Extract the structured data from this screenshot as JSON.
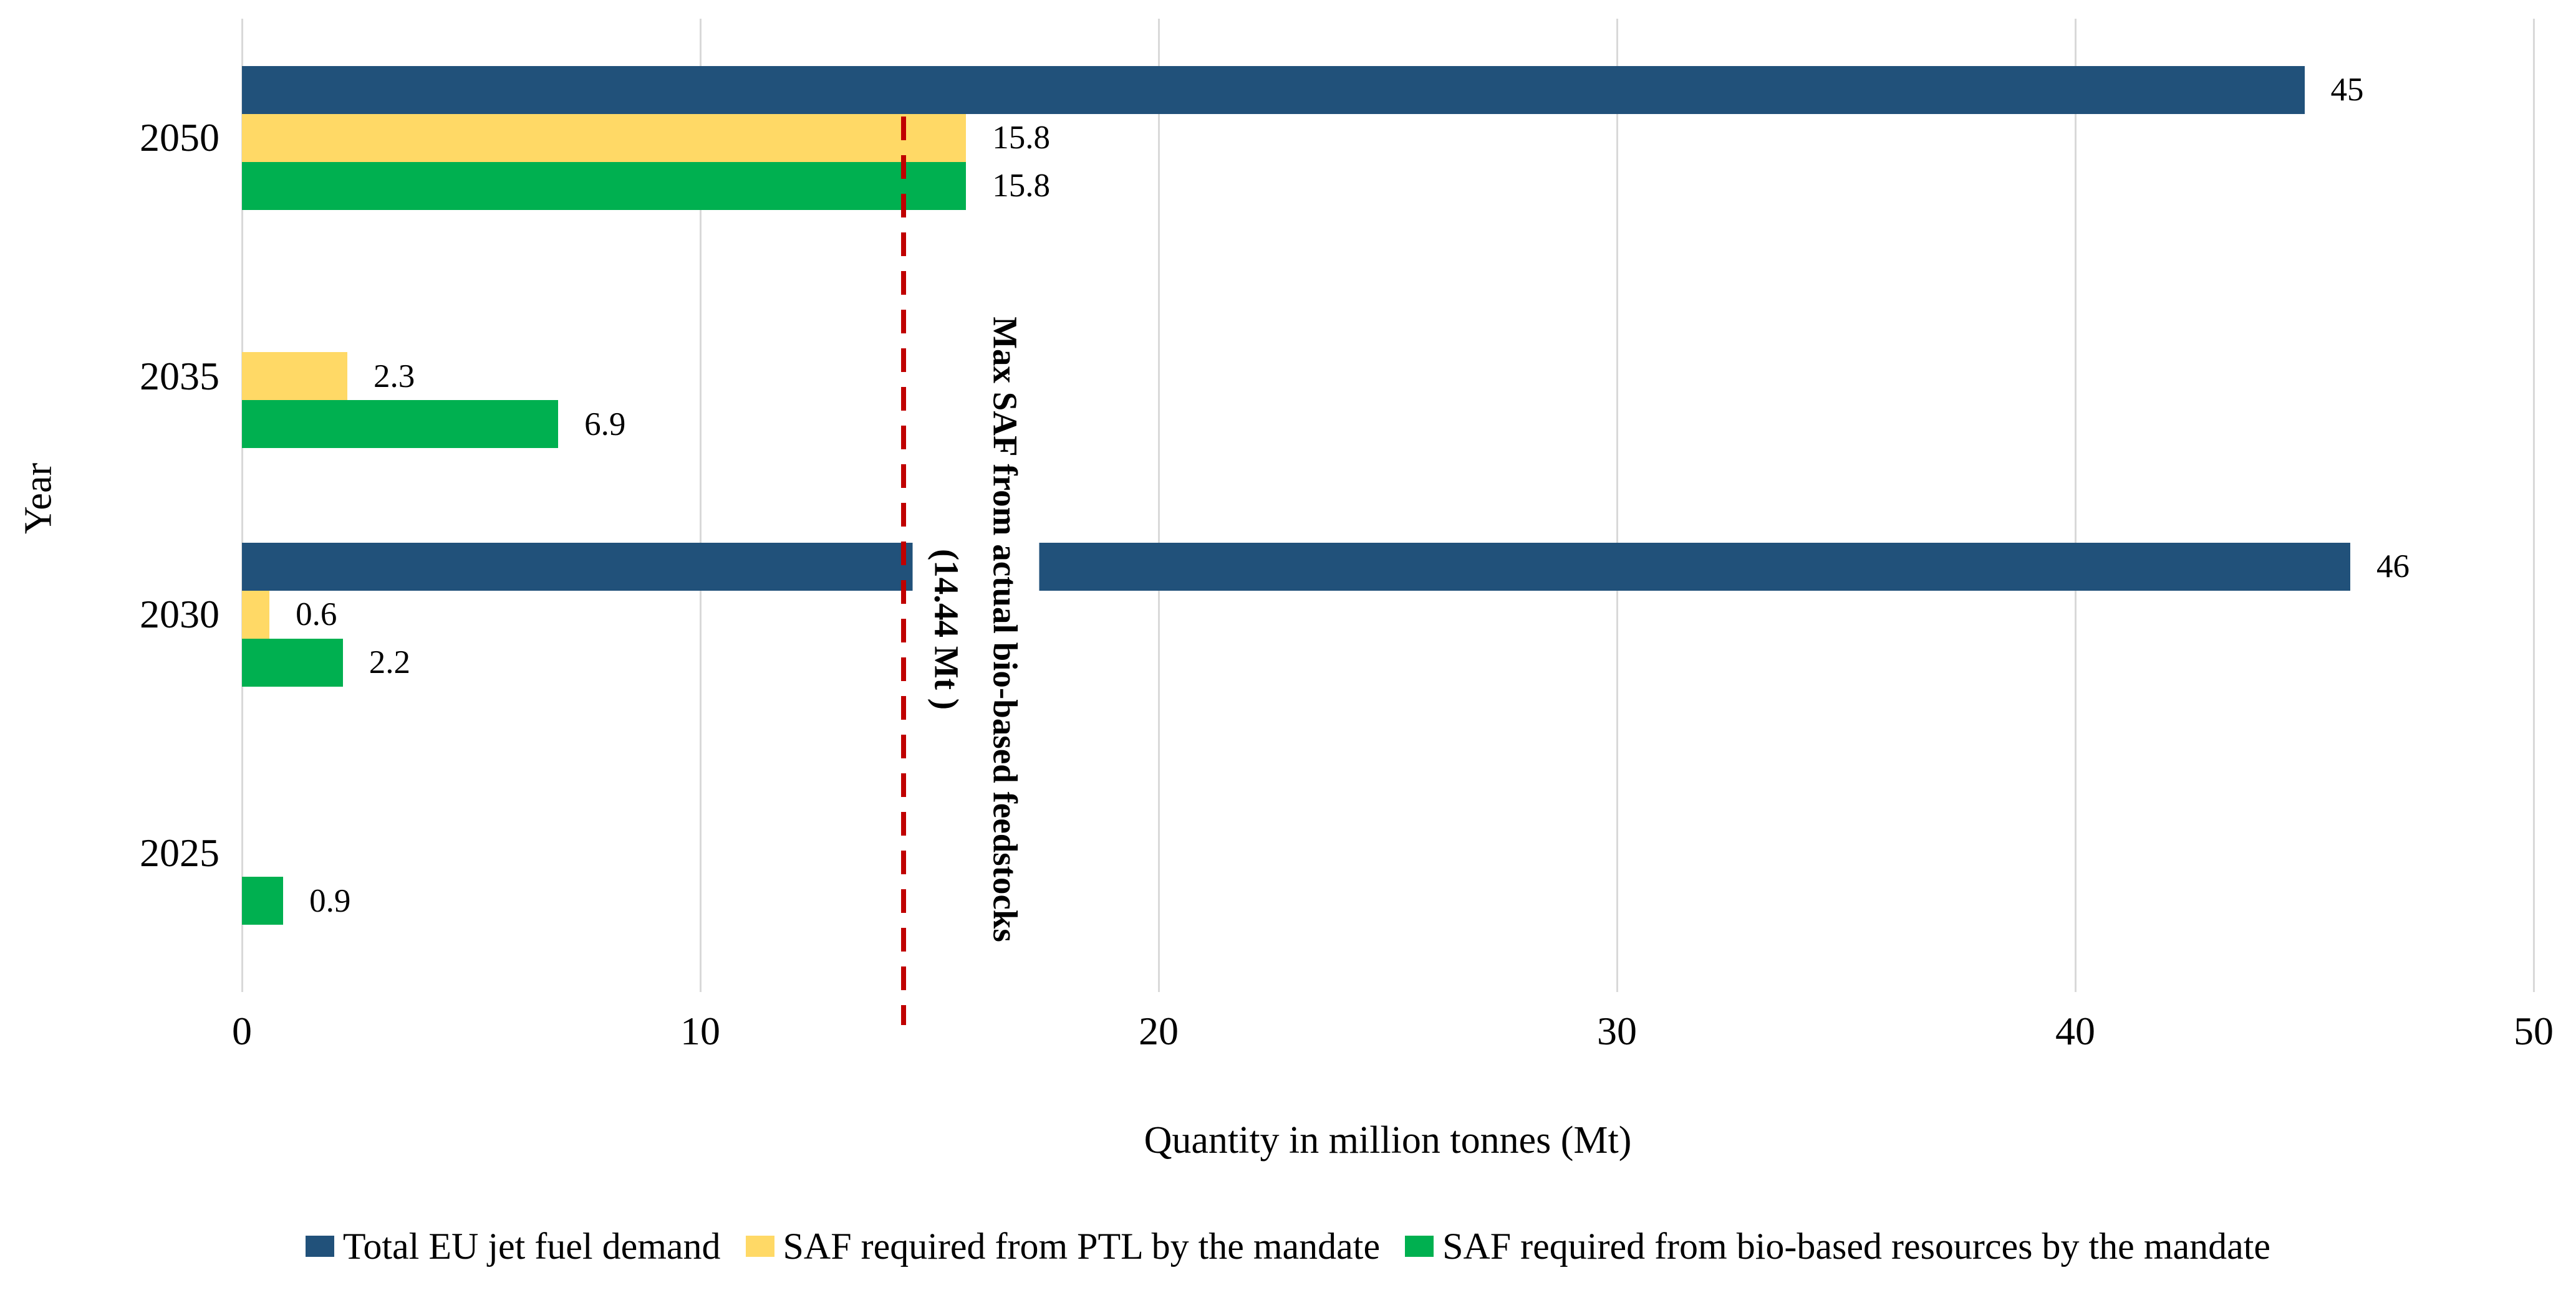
{
  "chart_data": {
    "type": "bar",
    "orientation": "horizontal",
    "categories": [
      "2050",
      "2035",
      "2030",
      "2025"
    ],
    "series": [
      {
        "name": "Total EU jet fuel demand",
        "color": "#21517A",
        "values": [
          45,
          null,
          46,
          null
        ]
      },
      {
        "name": "SAF required from PTL by the mandate",
        "color": "#FFD966",
        "values": [
          15.8,
          2.3,
          0.6,
          null
        ]
      },
      {
        "name": "SAF required from bio-based resources by the mandate",
        "color": "#00B050",
        "values": [
          15.8,
          6.9,
          2.2,
          0.9
        ]
      }
    ],
    "data_labels": [
      [
        "45",
        null,
        "46",
        null
      ],
      [
        "15.8",
        "2.3",
        "0.6",
        null
      ],
      [
        "15.8",
        "6.9",
        "2.2",
        "0.9"
      ]
    ],
    "xlabel": "Quantity in million tonnes (Mt)",
    "ylabel": "Year",
    "xlim": [
      0,
      50
    ],
    "xticks": [
      0,
      10,
      20,
      30,
      40,
      50
    ],
    "grid": true,
    "legend_position": "bottom",
    "reference_line": {
      "value": 14.44,
      "color": "#C00000",
      "label_lines": [
        "Max SAF from actual bio-based feedstocks",
        "(14.44 Mt )"
      ]
    },
    "style": {
      "gridline_color": "#D9D9D9",
      "text_color": "#000000",
      "background": "#FFFFFF"
    }
  }
}
